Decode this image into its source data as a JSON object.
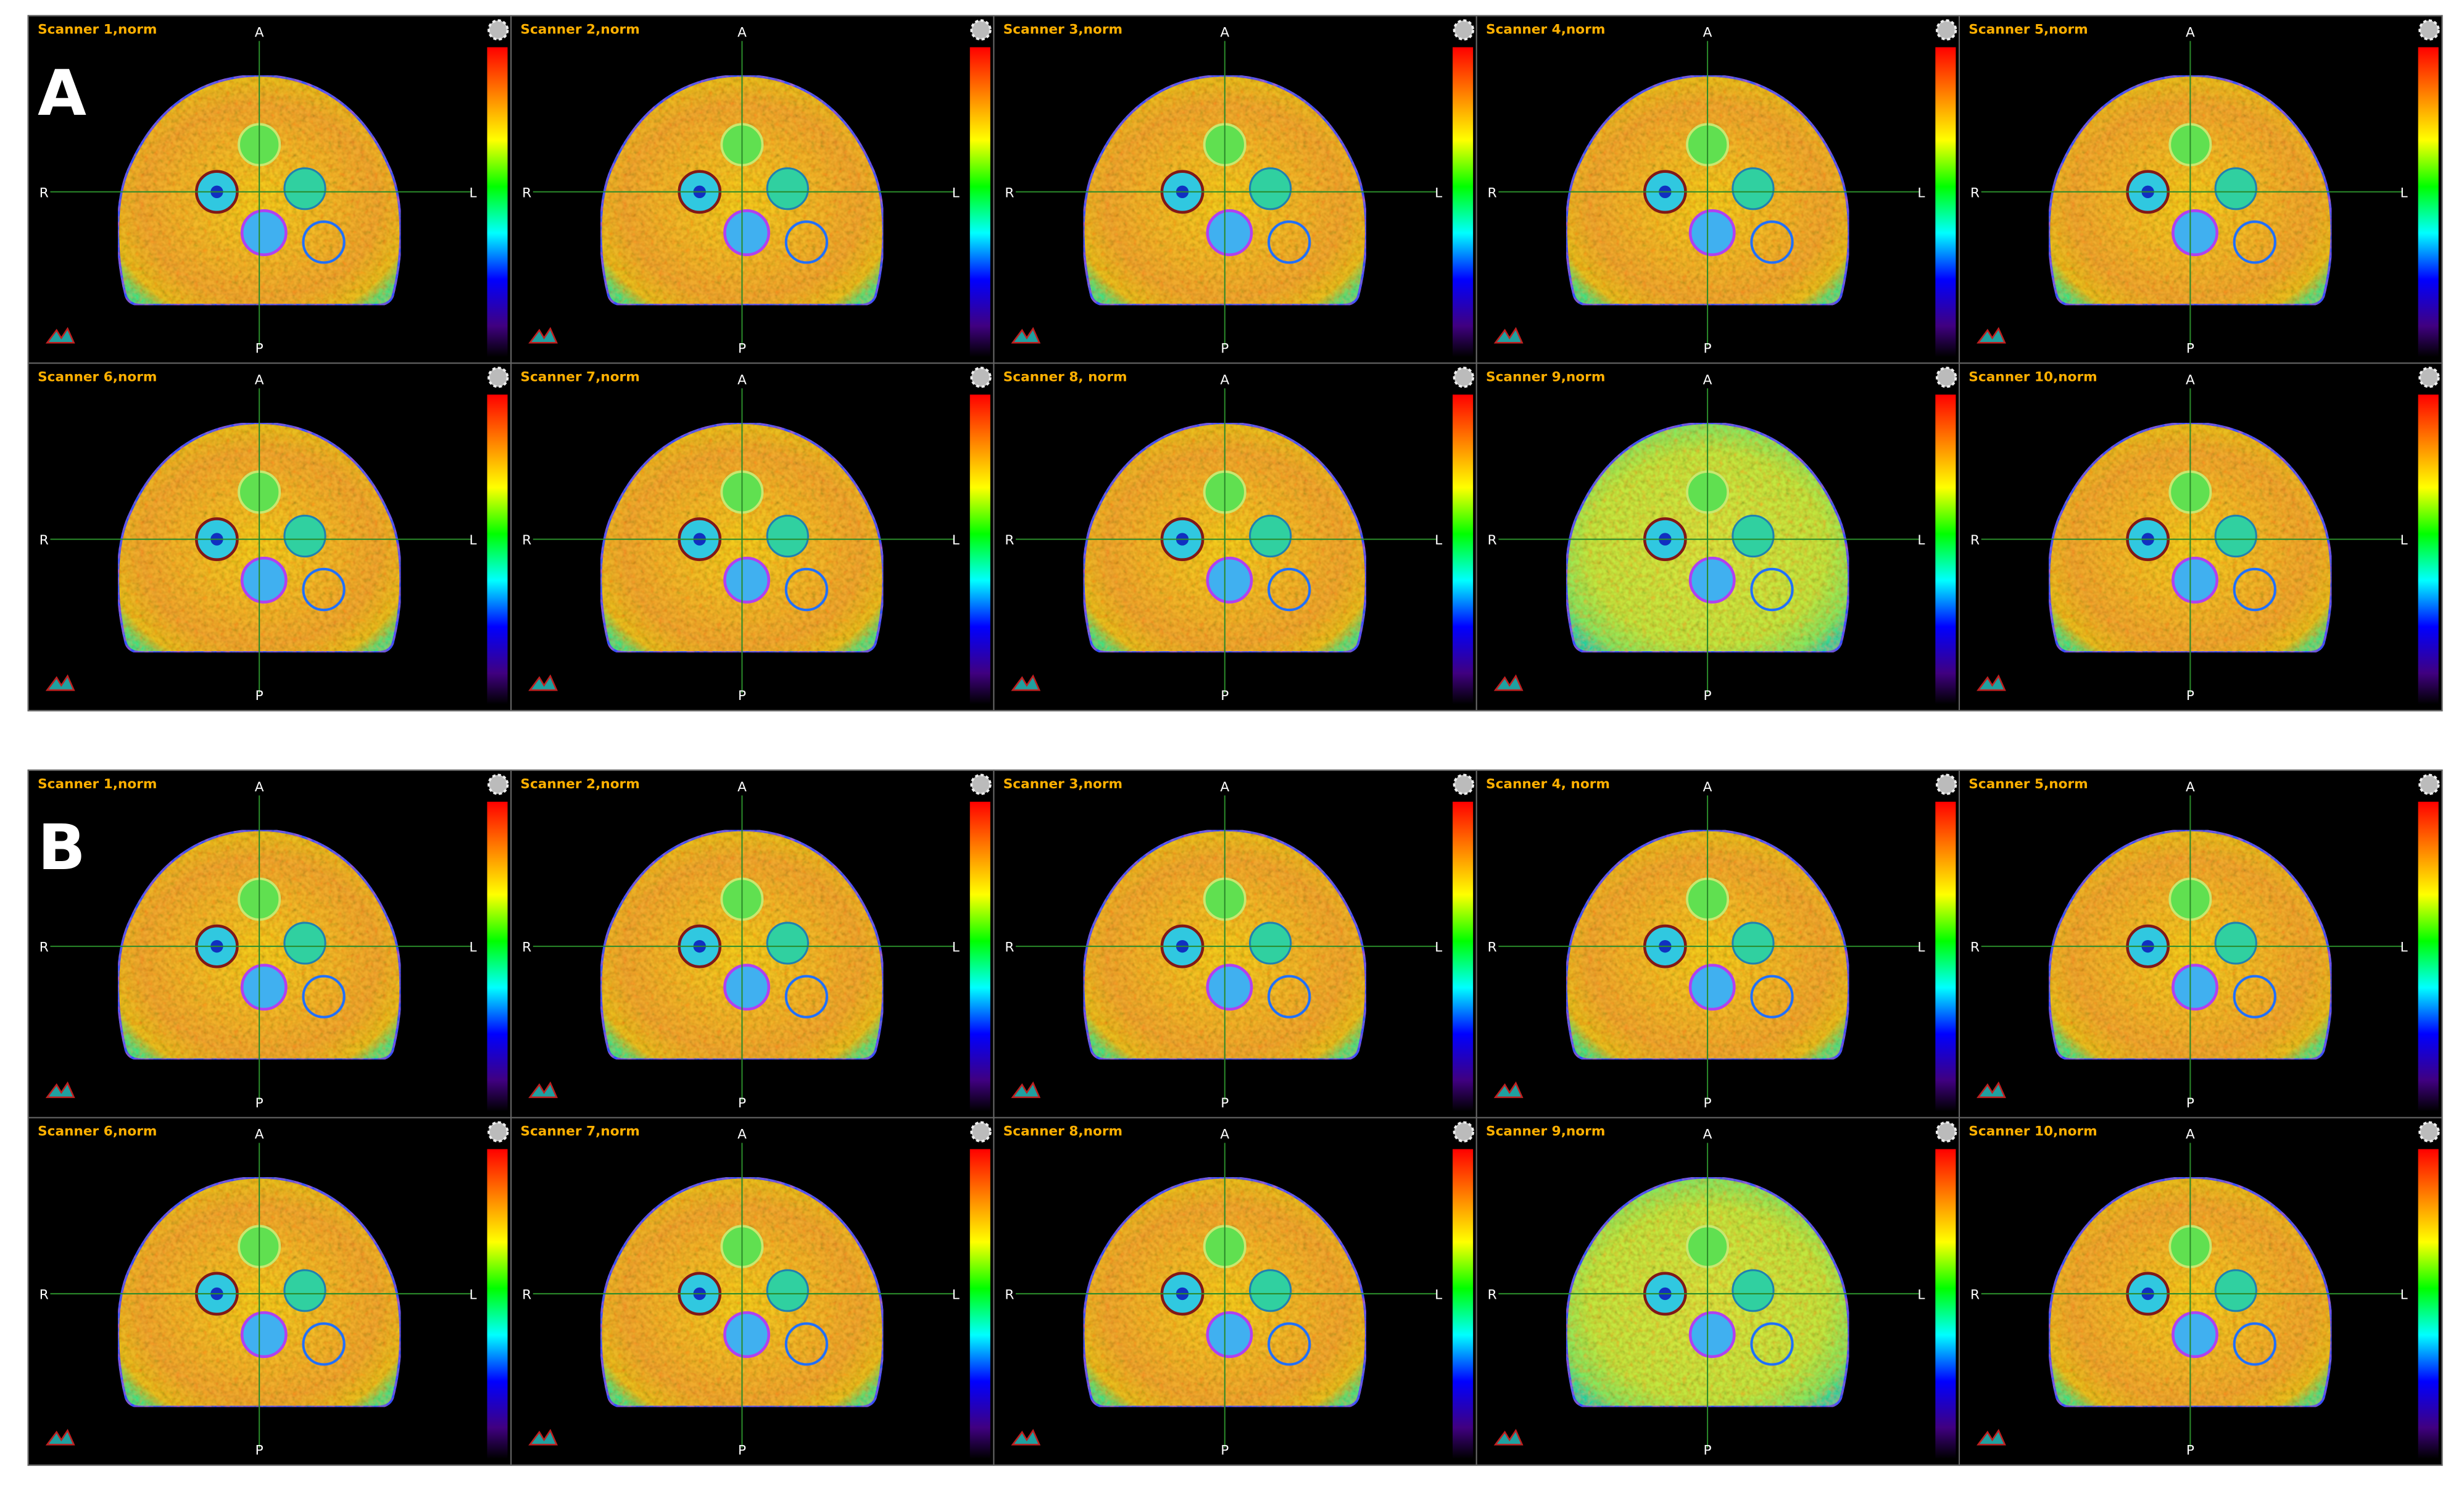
{
  "panels": [
    {
      "label": "A",
      "cells": [
        "Scanner 1,norm",
        "Scanner 2,norm",
        "Scanner 3,norm",
        "Scanner 4,norm",
        "Scanner 5,norm",
        "Scanner 6,norm",
        "Scanner 7,norm",
        "Scanner 8, norm",
        "Scanner 9,norm",
        "Scanner 10,norm"
      ]
    },
    {
      "label": "B",
      "cells": [
        "Scanner 1,norm",
        "Scanner 2,norm",
        "Scanner 3,norm",
        "Scanner 4, norm",
        "Scanner 5,norm",
        "Scanner 6,norm",
        "Scanner 7,norm",
        "Scanner 8,norm",
        "Scanner 9,norm",
        "Scanner 10,norm"
      ]
    }
  ],
  "orientation": {
    "anterior": "A",
    "posterior": "P",
    "right": "R",
    "left": "L"
  }
}
